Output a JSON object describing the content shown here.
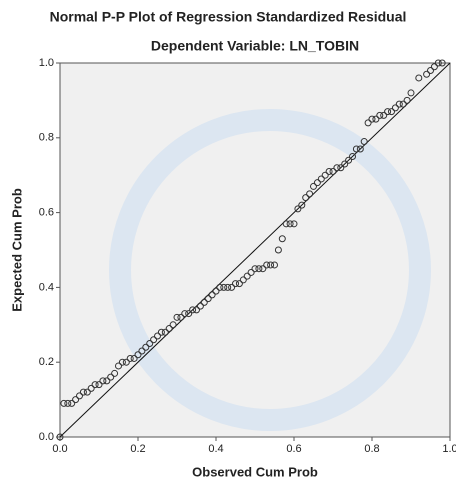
{
  "chart_data": {
    "type": "scatter",
    "title": "Normal P-P Plot of Regression Standardized Residual",
    "subtitle": "Dependent Variable: LN_TOBIN",
    "x_label": "Observed Cum Prob",
    "y_label": "Expected Cum Prob",
    "x": [
      0.0,
      0.01,
      0.02,
      0.03,
      0.04,
      0.05,
      0.06,
      0.07,
      0.08,
      0.09,
      0.1,
      0.11,
      0.12,
      0.13,
      0.14,
      0.15,
      0.16,
      0.17,
      0.18,
      0.19,
      0.2,
      0.21,
      0.22,
      0.23,
      0.24,
      0.25,
      0.26,
      0.27,
      0.28,
      0.29,
      0.3,
      0.31,
      0.32,
      0.33,
      0.34,
      0.35,
      0.36,
      0.37,
      0.38,
      0.39,
      0.4,
      0.41,
      0.42,
      0.43,
      0.44,
      0.45,
      0.46,
      0.47,
      0.48,
      0.49,
      0.5,
      0.51,
      0.52,
      0.53,
      0.54,
      0.55,
      0.56,
      0.57,
      0.58,
      0.59,
      0.6,
      0.61,
      0.62,
      0.63,
      0.64,
      0.65,
      0.66,
      0.67,
      0.68,
      0.69,
      0.7,
      0.71,
      0.72,
      0.73,
      0.74,
      0.75,
      0.76,
      0.77,
      0.78,
      0.79,
      0.8,
      0.81,
      0.82,
      0.83,
      0.84,
      0.85,
      0.86,
      0.87,
      0.88,
      0.89,
      0.9,
      0.92,
      0.94,
      0.95,
      0.96,
      0.97,
      0.98
    ],
    "values": [
      0.0,
      0.09,
      0.09,
      0.09,
      0.1,
      0.11,
      0.12,
      0.12,
      0.13,
      0.14,
      0.14,
      0.15,
      0.15,
      0.16,
      0.17,
      0.19,
      0.2,
      0.2,
      0.21,
      0.21,
      0.22,
      0.23,
      0.24,
      0.25,
      0.26,
      0.27,
      0.28,
      0.28,
      0.29,
      0.3,
      0.32,
      0.32,
      0.33,
      0.33,
      0.34,
      0.34,
      0.35,
      0.36,
      0.37,
      0.38,
      0.39,
      0.4,
      0.4,
      0.4,
      0.4,
      0.41,
      0.41,
      0.42,
      0.43,
      0.44,
      0.45,
      0.45,
      0.45,
      0.46,
      0.46,
      0.46,
      0.5,
      0.53,
      0.57,
      0.57,
      0.57,
      0.61,
      0.62,
      0.64,
      0.65,
      0.67,
      0.68,
      0.69,
      0.7,
      0.71,
      0.71,
      0.72,
      0.72,
      0.73,
      0.74,
      0.75,
      0.77,
      0.77,
      0.79,
      0.84,
      0.85,
      0.85,
      0.86,
      0.86,
      0.87,
      0.87,
      0.88,
      0.89,
      0.89,
      0.9,
      0.92,
      0.96,
      0.97,
      0.98,
      0.99,
      1.0,
      1.0
    ],
    "xlim": [
      0,
      1
    ],
    "ylim": [
      0,
      1
    ],
    "xticks": [
      {
        "value": 0,
        "label": "0.0"
      },
      0.2,
      0.4,
      0.6,
      0.8,
      {
        "value": 1,
        "label": "1.0"
      }
    ],
    "yticks": [
      {
        "value": 0,
        "label": "0.0"
      },
      0.2,
      0.4,
      0.6,
      0.8,
      {
        "value": 1,
        "label": "1.0"
      }
    ]
  }
}
